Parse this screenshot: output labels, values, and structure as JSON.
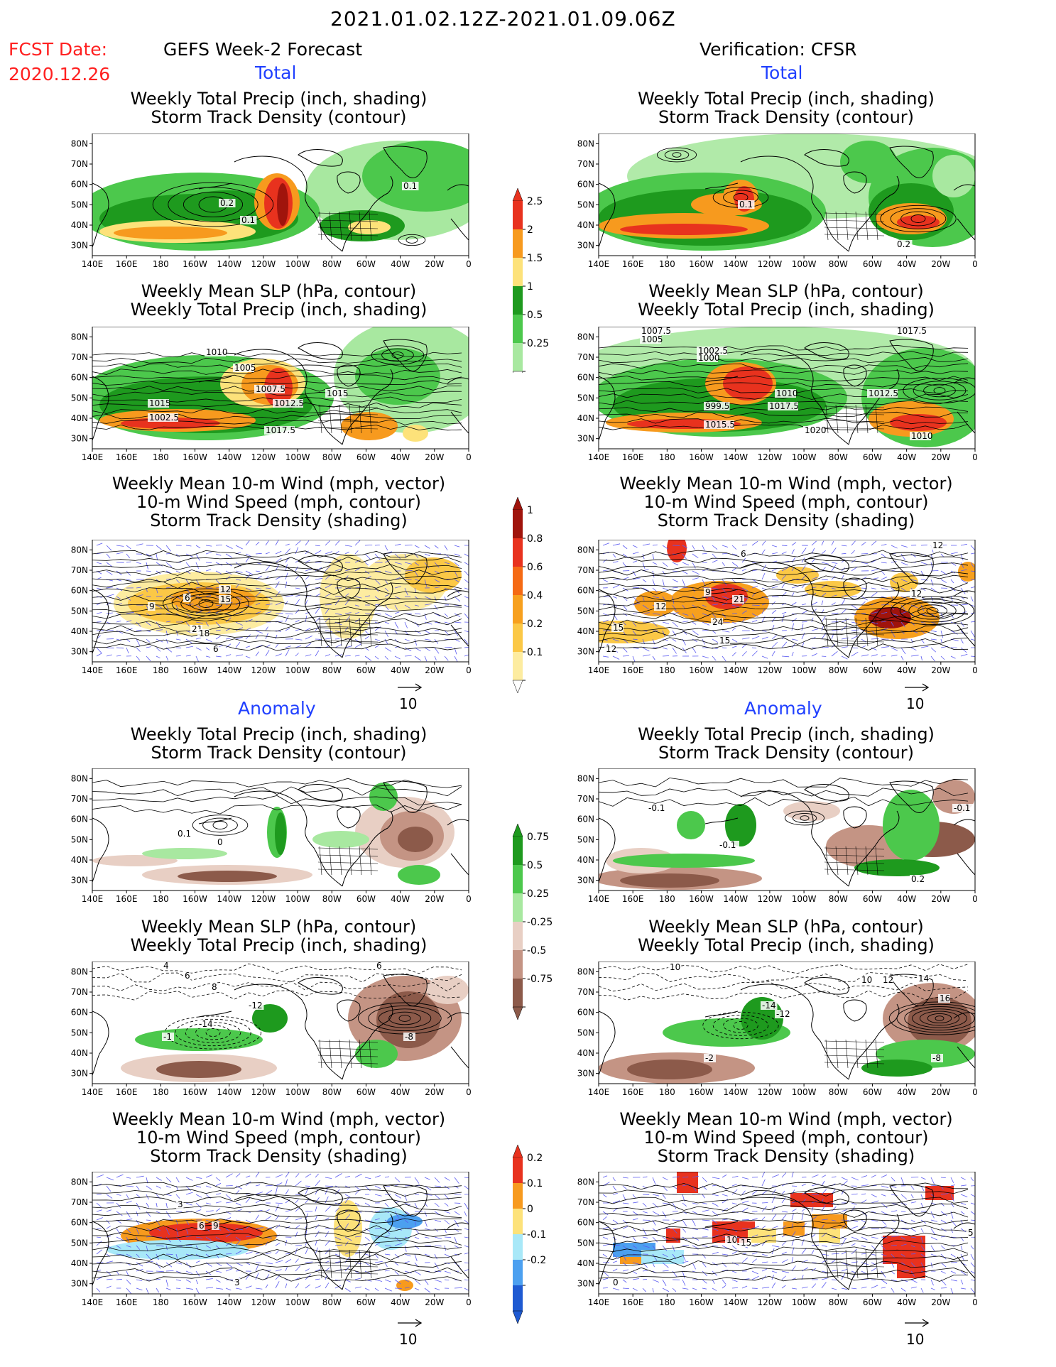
{
  "header": {
    "date_range": "2021.01.02.12Z-2021.01.09.06Z",
    "fcst_label": "FCST Date:",
    "fcst_date": "2020.12.26",
    "left_title": "GEFS Week-2 Forecast",
    "right_title": "Verification: CFSR",
    "total_label": "Total",
    "anomaly_label": "Anomaly"
  },
  "axes": {
    "lat_ticks": [
      "80N",
      "70N",
      "60N",
      "50N",
      "40N",
      "30N"
    ],
    "lon_ticks": [
      "140E",
      "160E",
      "180",
      "160W",
      "140W",
      "120W",
      "100W",
      "80W",
      "60W",
      "40W",
      "20W",
      "0"
    ]
  },
  "panel_titles": {
    "precip_storm": [
      "Weekly Total Precip (inch, shading)",
      "Storm Track Density (contour)"
    ],
    "slp_precip": [
      "Weekly Mean SLP (hPa, contour)",
      "Weekly Total Precip (inch, shading)"
    ],
    "wind_storm": [
      "Weekly Mean 10-m Wind (mph, vector)",
      "10-m Wind Speed (mph, contour)",
      "Storm Track Density (shading)"
    ]
  },
  "vector_scale": "10",
  "colorbars": {
    "total_precip": {
      "labels": [
        "2.5",
        "2",
        "1.5",
        "1",
        "0.5",
        "0.25"
      ],
      "colors": [
        "#e8321e",
        "#f79a1e",
        "#fde27a",
        "#1e9a1e",
        "#4cc84c",
        "#a8e8a0"
      ]
    },
    "total_storm": {
      "labels": [
        "1",
        "0.8",
        "0.6",
        "0.4",
        "0.2",
        "0.1"
      ],
      "colors": [
        "#a0140c",
        "#e8321e",
        "#f56a14",
        "#f7a01e",
        "#fbc846",
        "#fdeca0"
      ]
    },
    "anom_precip": {
      "labels": [
        "0.75",
        "0.5",
        "0.25",
        "-0.25",
        "-0.5",
        "-0.75"
      ],
      "colors": [
        "#1e9a1e",
        "#4cc84c",
        "#a8e8a0",
        "#e8cfc4",
        "#c49484",
        "#8c5a4a"
      ]
    },
    "anom_storm": {
      "labels": [
        "0.2",
        "0.1",
        "0",
        "-0.1",
        "-0.2"
      ],
      "colors": [
        "#e8321e",
        "#f79a1e",
        "#fde27a",
        "#a8e8f8",
        "#4ca0f0",
        "#1e5ad2"
      ]
    }
  },
  "contour_labels": {
    "fc_total_precip": [
      "0.2",
      "0.1",
      "0.1"
    ],
    "vf_total_precip": [
      "0.1",
      "0.2"
    ],
    "fc_total_slp": [
      "1010",
      "1005",
      "1007.5",
      "1012.5",
      "1015",
      "1017.5",
      "1002.5",
      "1015"
    ],
    "vf_total_slp": [
      "1007.5",
      "1005",
      "1002.5",
      "1000",
      "1017.5",
      "1010",
      "1012.5",
      "1017.5",
      "1020",
      "1015.5",
      "1010",
      "999.5"
    ],
    "fc_total_wind": [
      "12",
      "15",
      "9",
      "6",
      "21",
      "18",
      "6"
    ],
    "vf_total_wind": [
      "6",
      "12",
      "12",
      "9",
      "21",
      "24",
      "15",
      "15",
      "12",
      "12"
    ],
    "fc_anom_precip": [
      "0.1",
      "0"
    ],
    "vf_anom_precip": [
      "-0.1",
      "-0.1",
      "-0.1",
      "0.2"
    ],
    "fc_anom_slp": [
      "4",
      "6",
      "8",
      "-12",
      "-14",
      "-1",
      "-8",
      "6"
    ],
    "vf_anom_slp": [
      "10",
      "-14",
      "-12",
      "10",
      "12",
      "14",
      "16",
      "-2",
      "-8"
    ],
    "fc_anom_wind": [
      "3",
      "6",
      "9",
      "3"
    ],
    "vf_anom_wind": [
      "10",
      "15",
      "5",
      "0"
    ]
  }
}
